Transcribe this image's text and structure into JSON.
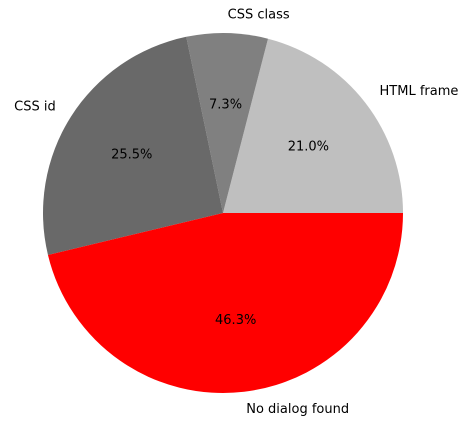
{
  "chart_data": {
    "type": "pie",
    "labels": [
      "HTML frame",
      "CSS class",
      "CSS id",
      "No dialog found"
    ],
    "values": [
      21.0,
      7.3,
      25.5,
      46.3
    ],
    "percent_labels": [
      "21.0%",
      "7.3%",
      "25.5%",
      "46.3%"
    ],
    "colors": [
      "#bfbfbf",
      "#808080",
      "#696969",
      "#ff0000"
    ],
    "start_angle_deg": 0,
    "direction": "counterclockwise"
  }
}
